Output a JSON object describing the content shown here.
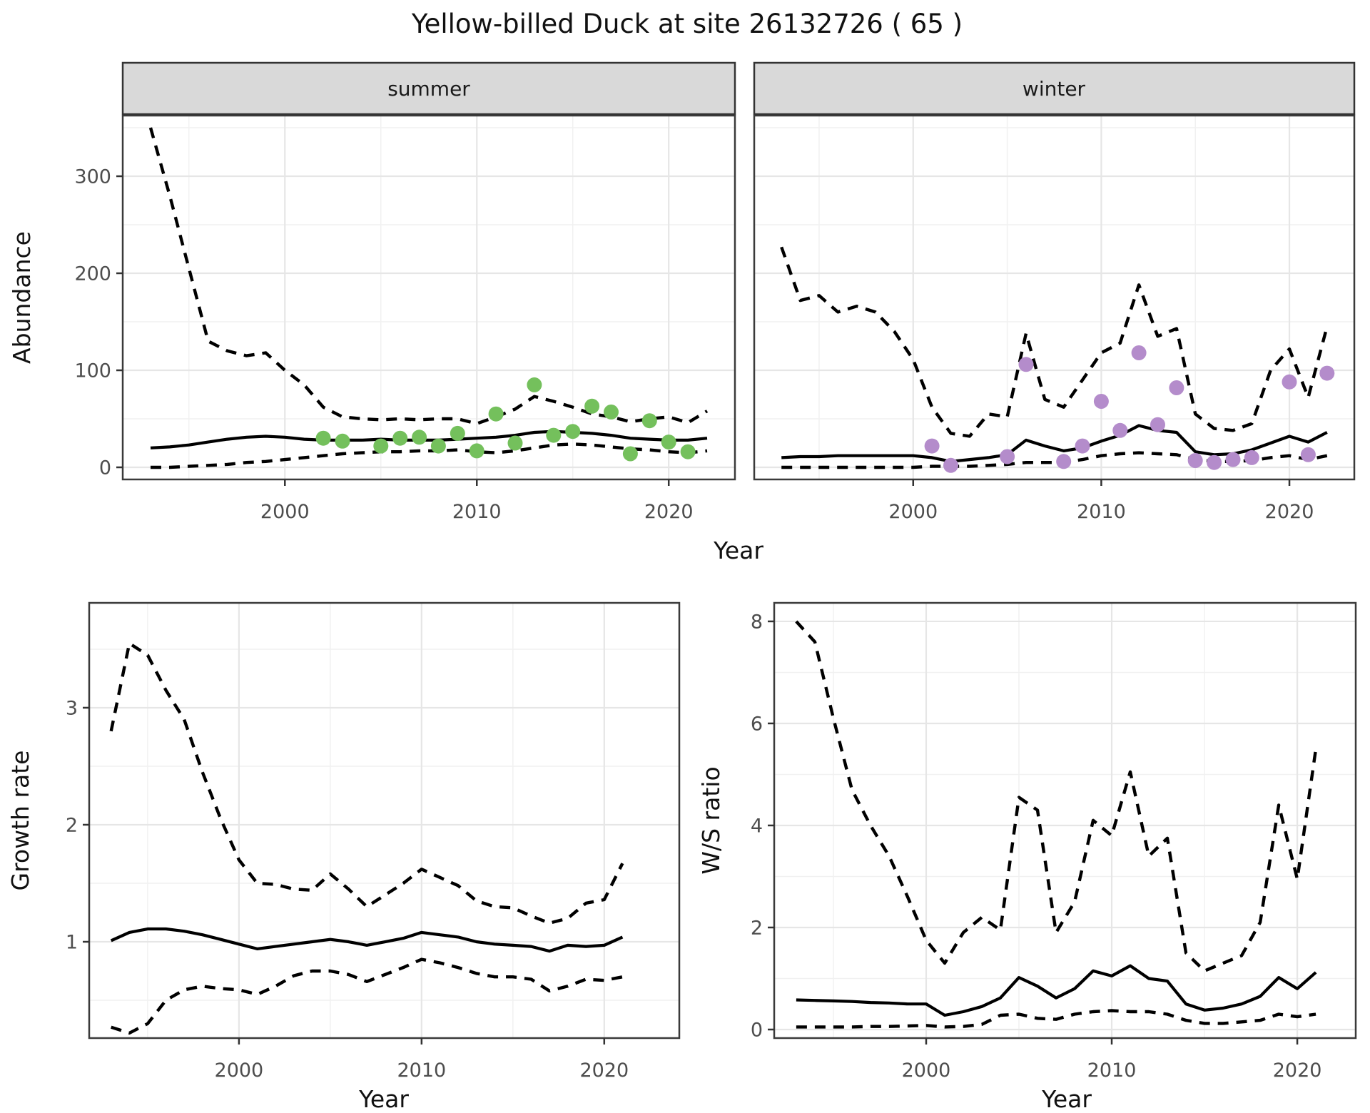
{
  "title": "Yellow-billed Duck at site 26132726 ( 65 )",
  "facets": {
    "summer_label": "summer",
    "winter_label": "winter"
  },
  "axis_titles": {
    "abundance_y": "Abundance",
    "top_x": "Year",
    "growth_y": "Growth rate",
    "growth_x": "Year",
    "ws_y": "W/S ratio",
    "ws_x": "Year"
  },
  "colors": {
    "summer_points": "#74c05c",
    "winter_points": "#b48ccb",
    "line": "#000000",
    "grid_major": "#e6e6e6",
    "grid_minor": "#f1f1f1",
    "panel_border": "#3a3a3a",
    "strip_fill": "#d9d9d9",
    "strip_border": "#333333",
    "tick": "#333333",
    "tick_label": "#4d4d4d"
  },
  "chart_data": [
    {
      "id": "abundance-summer",
      "type": "line",
      "facet": "summer",
      "xlabel": "Year",
      "ylabel": "Abundance",
      "xlim": [
        1991.55,
        2023.45
      ],
      "ylim": [
        -12.5,
        362.5
      ],
      "x_ticks": [
        2000,
        2010,
        2020
      ],
      "x_minor": [
        1995,
        2005,
        2015
      ],
      "y_ticks": [
        0,
        100,
        200,
        300
      ],
      "y_minor": [
        50,
        150,
        250,
        350
      ],
      "years": [
        1993,
        1994,
        1995,
        1996,
        1997,
        1998,
        1999,
        2000,
        2001,
        2002,
        2003,
        2004,
        2005,
        2006,
        2007,
        2008,
        2009,
        2010,
        2011,
        2012,
        2013,
        2014,
        2015,
        2016,
        2017,
        2018,
        2019,
        2020,
        2021,
        2022
      ],
      "series": [
        {
          "name": "median",
          "style": "solid",
          "values": [
            20,
            21,
            23,
            26,
            29,
            31,
            32,
            31,
            29,
            28,
            28,
            28,
            29,
            28,
            28,
            28,
            29,
            30,
            31,
            33,
            36,
            37,
            36,
            35,
            33,
            30,
            29,
            28,
            28,
            30
          ]
        },
        {
          "name": "upper_ci",
          "style": "dashed",
          "values": [
            350,
            280,
            205,
            130,
            120,
            115,
            118,
            100,
            85,
            62,
            52,
            50,
            49,
            50,
            49,
            50,
            50,
            45,
            52,
            60,
            73,
            68,
            62,
            55,
            52,
            47,
            50,
            52,
            46,
            58
          ]
        },
        {
          "name": "lower_ci",
          "style": "dashed",
          "values": [
            0,
            0,
            1,
            2,
            3,
            5,
            6,
            8,
            10,
            12,
            14,
            15,
            16,
            16,
            17,
            17,
            18,
            16,
            15,
            17,
            20,
            23,
            24,
            23,
            21,
            19,
            18,
            16,
            15,
            17
          ]
        }
      ],
      "points": {
        "name": "observed-summer",
        "color_key": "summer_points",
        "data": [
          [
            2002,
            30
          ],
          [
            2003,
            27
          ],
          [
            2005,
            22
          ],
          [
            2006,
            30
          ],
          [
            2007,
            31
          ],
          [
            2008,
            22
          ],
          [
            2009,
            35
          ],
          [
            2010,
            17
          ],
          [
            2011,
            55
          ],
          [
            2012,
            25
          ],
          [
            2013,
            85
          ],
          [
            2014,
            33
          ],
          [
            2015,
            37
          ],
          [
            2016,
            63
          ],
          [
            2017,
            57
          ],
          [
            2018,
            14
          ],
          [
            2019,
            48
          ],
          [
            2020,
            26
          ],
          [
            2021,
            16
          ]
        ]
      }
    },
    {
      "id": "abundance-winter",
      "type": "line",
      "facet": "winter",
      "xlabel": "Year",
      "ylabel": "Abundance",
      "xlim": [
        1991.55,
        2023.45
      ],
      "ylim": [
        -12.5,
        362.5
      ],
      "x_ticks": [
        2000,
        2010,
        2020
      ],
      "x_minor": [
        1995,
        2005,
        2015
      ],
      "y_ticks": [
        0,
        100,
        200,
        300
      ],
      "y_minor": [
        50,
        150,
        250,
        350
      ],
      "years": [
        1993,
        1994,
        1995,
        1996,
        1997,
        1998,
        1999,
        2000,
        2001,
        2002,
        2003,
        2004,
        2005,
        2006,
        2007,
        2008,
        2009,
        2010,
        2011,
        2012,
        2013,
        2014,
        2015,
        2016,
        2017,
        2018,
        2019,
        2020,
        2021,
        2022
      ],
      "series": [
        {
          "name": "median",
          "style": "solid",
          "values": [
            10,
            11,
            11,
            12,
            12,
            12,
            12,
            12,
            10,
            6,
            8,
            10,
            13,
            28,
            22,
            17,
            20,
            27,
            33,
            43,
            38,
            36,
            16,
            13,
            14,
            18,
            25,
            32,
            26,
            36
          ]
        },
        {
          "name": "upper_ci",
          "style": "dashed",
          "values": [
            227,
            172,
            177,
            160,
            166,
            160,
            140,
            111,
            62,
            35,
            32,
            55,
            52,
            138,
            70,
            62,
            90,
            118,
            128,
            188,
            135,
            143,
            55,
            40,
            38,
            45,
            100,
            122,
            72,
            145
          ]
        },
        {
          "name": "lower_ci",
          "style": "dashed",
          "values": [
            0,
            0,
            0,
            0,
            0,
            0,
            0,
            0,
            1,
            1,
            1,
            2,
            3,
            5,
            5,
            5,
            8,
            12,
            14,
            15,
            14,
            13,
            8,
            6,
            6,
            7,
            10,
            12,
            8,
            12
          ]
        }
      ],
      "points": {
        "name": "observed-winter",
        "color_key": "winter_points",
        "data": [
          [
            2001,
            22
          ],
          [
            2002,
            2
          ],
          [
            2005,
            11
          ],
          [
            2006,
            106
          ],
          [
            2008,
            6
          ],
          [
            2009,
            22
          ],
          [
            2010,
            68
          ],
          [
            2011,
            38
          ],
          [
            2012,
            118
          ],
          [
            2013,
            44
          ],
          [
            2014,
            82
          ],
          [
            2015,
            7
          ],
          [
            2016,
            5
          ],
          [
            2017,
            8
          ],
          [
            2018,
            10
          ],
          [
            2020,
            88
          ],
          [
            2021,
            13
          ],
          [
            2022,
            97
          ]
        ]
      }
    },
    {
      "id": "growth-rate",
      "type": "line",
      "facet": null,
      "xlabel": "Year",
      "ylabel": "Growth rate",
      "xlim": [
        1991.8,
        2024.11
      ],
      "ylim": [
        0.177,
        3.896
      ],
      "x_ticks": [
        2000,
        2010,
        2020
      ],
      "x_minor": [
        1995,
        2005,
        2015
      ],
      "y_ticks": [
        1,
        2,
        3
      ],
      "y_minor": [
        0.5,
        1.5,
        2.5,
        3.5
      ],
      "years": [
        1993,
        1994,
        1995,
        1996,
        1997,
        1998,
        1999,
        2000,
        2001,
        2002,
        2003,
        2004,
        2005,
        2006,
        2007,
        2008,
        2009,
        2010,
        2011,
        2012,
        2013,
        2014,
        2015,
        2016,
        2017,
        2018,
        2019,
        2020,
        2021
      ],
      "series": [
        {
          "name": "median",
          "style": "solid",
          "values": [
            1.01,
            1.08,
            1.11,
            1.11,
            1.09,
            1.06,
            1.02,
            0.98,
            0.94,
            0.96,
            0.98,
            1.0,
            1.02,
            1.0,
            0.97,
            1.0,
            1.03,
            1.08,
            1.06,
            1.04,
            1.0,
            0.98,
            0.97,
            0.96,
            0.92,
            0.97,
            0.96,
            0.97,
            1.04
          ]
        },
        {
          "name": "upper_ci",
          "style": "dashed",
          "values": [
            2.8,
            3.55,
            3.45,
            3.15,
            2.9,
            2.45,
            2.05,
            1.7,
            1.5,
            1.49,
            1.45,
            1.44,
            1.58,
            1.45,
            1.3,
            1.4,
            1.5,
            1.62,
            1.55,
            1.48,
            1.35,
            1.3,
            1.29,
            1.22,
            1.16,
            1.2,
            1.33,
            1.36,
            1.67
          ]
        },
        {
          "name": "lower_ci",
          "style": "dashed",
          "values": [
            0.27,
            0.22,
            0.3,
            0.5,
            0.59,
            0.62,
            0.6,
            0.59,
            0.55,
            0.62,
            0.71,
            0.75,
            0.75,
            0.72,
            0.66,
            0.72,
            0.78,
            0.85,
            0.82,
            0.78,
            0.73,
            0.7,
            0.7,
            0.68,
            0.58,
            0.62,
            0.68,
            0.67,
            0.7
          ]
        }
      ],
      "points": null
    },
    {
      "id": "ws-ratio",
      "type": "line",
      "facet": null,
      "xlabel": "Year",
      "ylabel": "W/S ratio",
      "xlim": [
        1991.81,
        2023.15
      ],
      "ylim": [
        -0.168,
        8.363
      ],
      "x_ticks": [
        2000,
        2010,
        2020
      ],
      "x_minor": [
        1995,
        2005,
        2015
      ],
      "y_ticks": [
        0,
        2,
        4,
        6,
        8
      ],
      "y_minor": [
        1,
        3,
        5,
        7
      ],
      "years": [
        1993,
        1994,
        1995,
        1996,
        1997,
        1998,
        1999,
        2000,
        2001,
        2002,
        2003,
        2004,
        2005,
        2006,
        2007,
        2008,
        2009,
        2010,
        2011,
        2012,
        2013,
        2014,
        2015,
        2016,
        2017,
        2018,
        2019,
        2020,
        2021
      ],
      "series": [
        {
          "name": "median",
          "style": "solid",
          "values": [
            0.58,
            0.57,
            0.56,
            0.55,
            0.53,
            0.52,
            0.5,
            0.5,
            0.28,
            0.35,
            0.45,
            0.62,
            1.02,
            0.85,
            0.62,
            0.8,
            1.15,
            1.05,
            1.25,
            1.0,
            0.95,
            0.5,
            0.38,
            0.42,
            0.5,
            0.65,
            1.02,
            0.8,
            1.12
          ]
        },
        {
          "name": "upper_ci",
          "style": "dashed",
          "values": [
            8.0,
            7.6,
            6.1,
            4.7,
            4.0,
            3.4,
            2.6,
            1.75,
            1.3,
            1.9,
            2.2,
            1.95,
            4.55,
            4.3,
            1.9,
            2.5,
            4.1,
            3.8,
            5.05,
            3.4,
            3.75,
            1.5,
            1.15,
            1.3,
            1.45,
            2.1,
            4.4,
            2.95,
            5.5
          ]
        },
        {
          "name": "lower_ci",
          "style": "dashed",
          "values": [
            0.05,
            0.05,
            0.05,
            0.05,
            0.06,
            0.06,
            0.07,
            0.08,
            0.05,
            0.06,
            0.1,
            0.28,
            0.3,
            0.22,
            0.2,
            0.3,
            0.35,
            0.37,
            0.35,
            0.35,
            0.3,
            0.18,
            0.12,
            0.12,
            0.15,
            0.18,
            0.3,
            0.25,
            0.3
          ]
        }
      ],
      "points": null
    }
  ]
}
